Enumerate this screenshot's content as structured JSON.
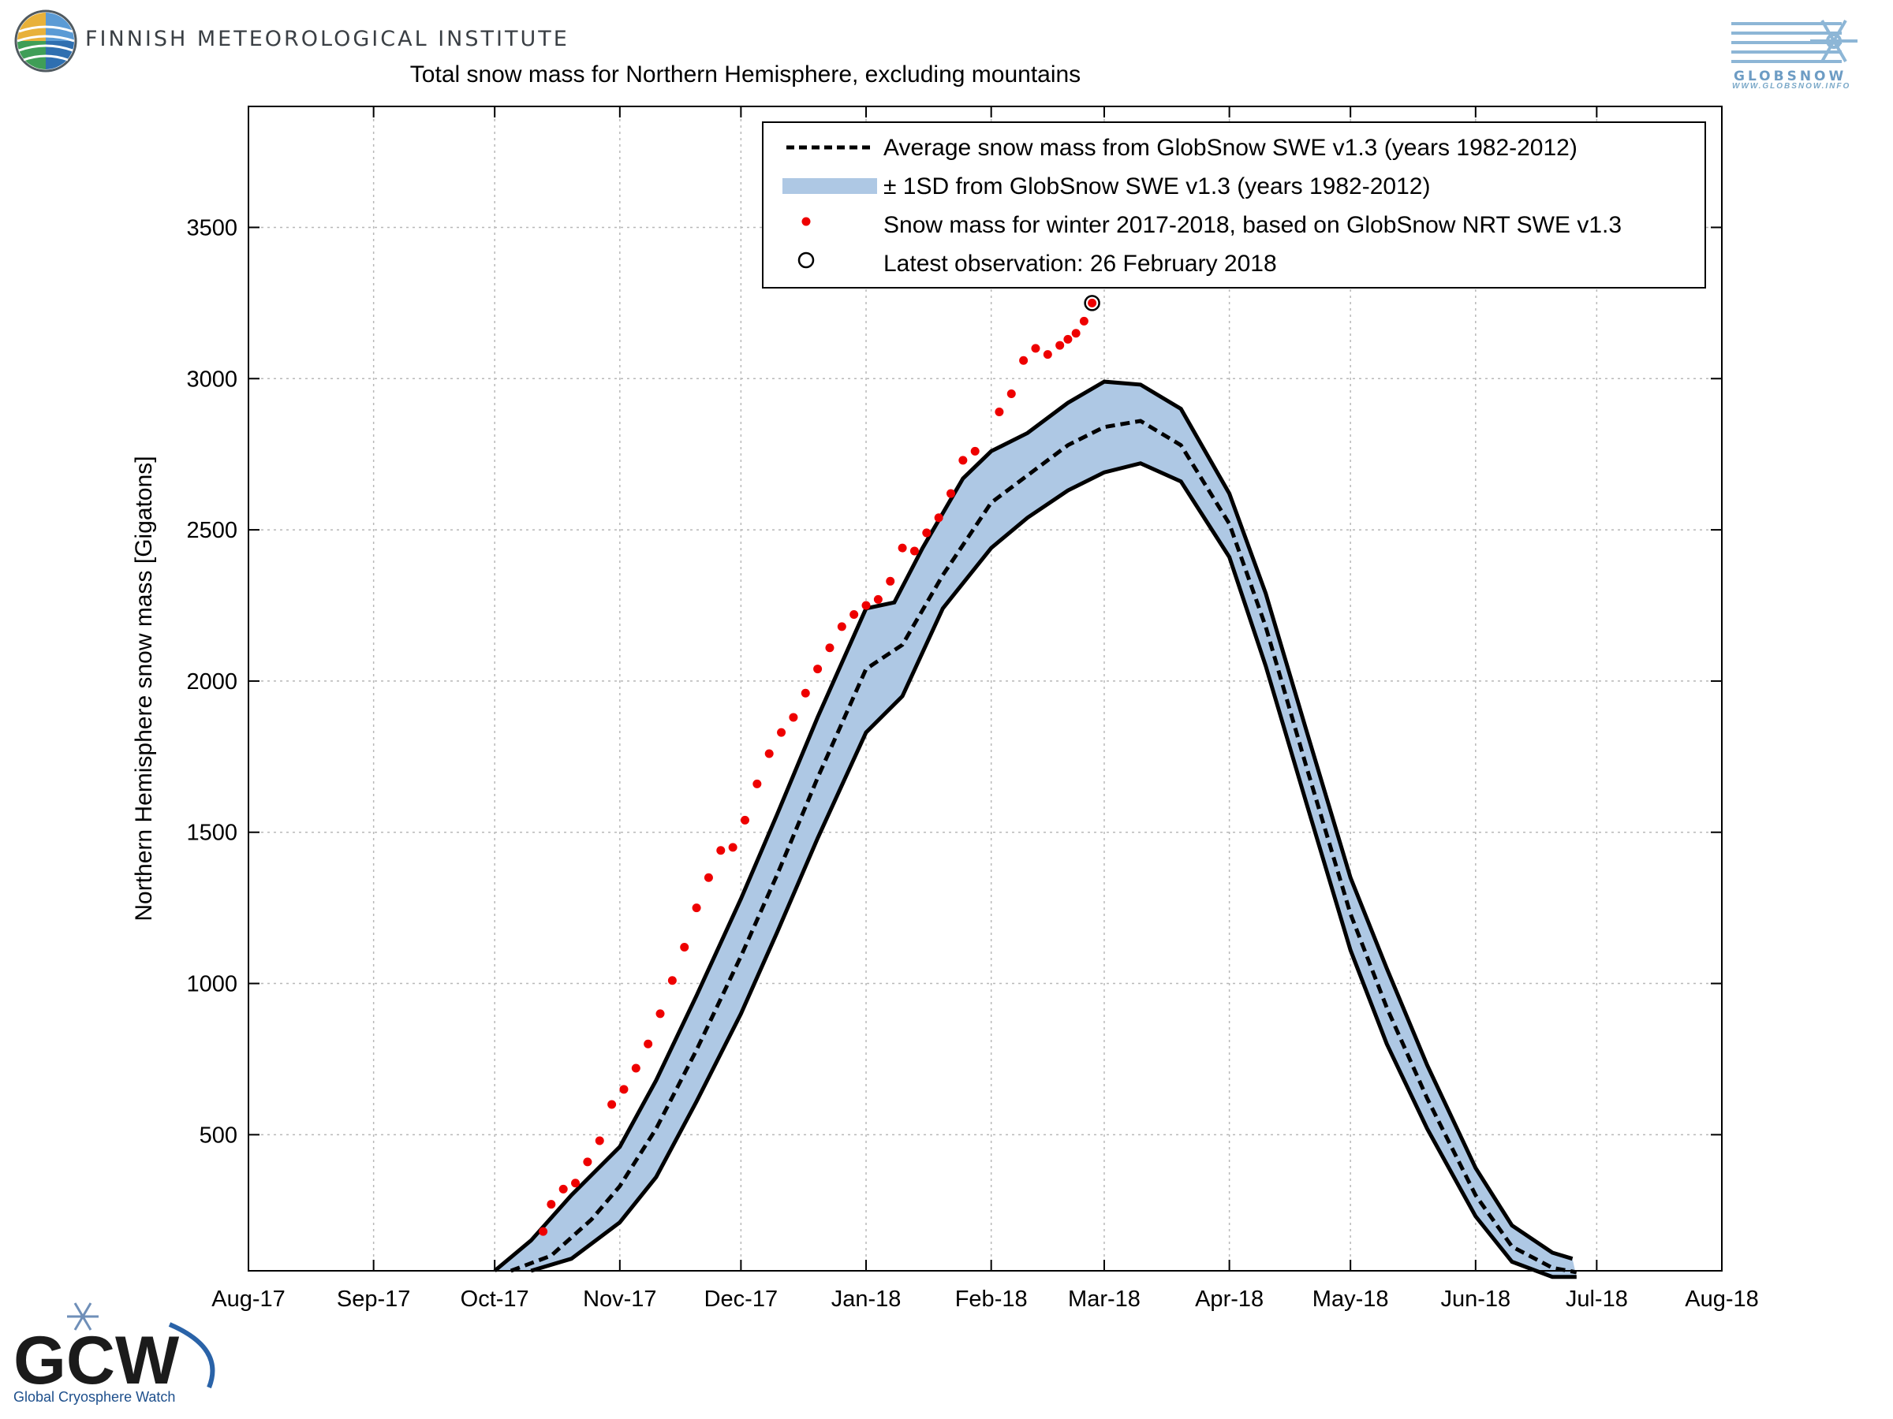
{
  "header": {
    "institute": "FINNISH METEOROLOGICAL INSTITUTE",
    "globsnow_url": "WWW.GLOBSNOW.INFO",
    "gcw_name": "Global Cryosphere Watch"
  },
  "colors": {
    "band": "#aec8e4",
    "obs": "#ee0000",
    "lines": "#000000",
    "grid": "#b8b8b8"
  },
  "chart_data": {
    "type": "line",
    "title": "Total snow mass for Northern Hemisphere, excluding mountains",
    "ylabel": "Northern Hemisphere snow mass [Gigatons]",
    "xlabel": "",
    "ylim": [
      50,
      3900
    ],
    "xlim": [
      "2017-08-01",
      "2018-08-01"
    ],
    "yticks": [
      500,
      1000,
      1500,
      2000,
      2500,
      3000,
      3500
    ],
    "xticks": [
      {
        "date": "2017-08-01",
        "label": "Aug-17"
      },
      {
        "date": "2017-09-01",
        "label": "Sep-17"
      },
      {
        "date": "2017-10-01",
        "label": "Oct-17"
      },
      {
        "date": "2017-11-01",
        "label": "Nov-17"
      },
      {
        "date": "2017-12-01",
        "label": "Dec-17"
      },
      {
        "date": "2018-01-01",
        "label": "Jan-18"
      },
      {
        "date": "2018-02-01",
        "label": "Feb-18"
      },
      {
        "date": "2018-03-01",
        "label": "Mar-18"
      },
      {
        "date": "2018-04-01",
        "label": "Apr-18"
      },
      {
        "date": "2018-05-01",
        "label": "May-18"
      },
      {
        "date": "2018-06-01",
        "label": "Jun-18"
      },
      {
        "date": "2018-07-01",
        "label": "Jul-18"
      },
      {
        "date": "2018-08-01",
        "label": "Aug-18"
      }
    ],
    "grid": true,
    "legend_position": "top-right",
    "legend": [
      {
        "kind": "dashed",
        "label": "Average snow mass from GlobSnow SWE v1.3 (years 1982-2012)"
      },
      {
        "kind": "band",
        "label": "± 1SD from GlobSnow SWE v1.3 (years 1982-2012)"
      },
      {
        "kind": "dot",
        "label": "Snow mass for winter 2017-2018, based on GlobSnow NRT SWE v1.3"
      },
      {
        "kind": "circle",
        "label": "Latest observation: 26 February 2018"
      }
    ],
    "series": [
      {
        "name": "Average snow mass from GlobSnow SWE v1.3 (years 1982-2012)",
        "style": "dashed",
        "x": [
          "2017-10-05",
          "2017-10-15",
          "2017-10-25",
          "2017-11-01",
          "2017-11-10",
          "2017-11-20",
          "2017-12-01",
          "2017-12-10",
          "2017-12-20",
          "2018-01-01",
          "2018-01-10",
          "2018-01-20",
          "2018-02-01",
          "2018-02-10",
          "2018-02-20",
          "2018-03-01",
          "2018-03-10",
          "2018-03-20",
          "2018-04-01",
          "2018-04-10",
          "2018-04-20",
          "2018-05-01",
          "2018-05-10",
          "2018-05-20",
          "2018-06-01",
          "2018-06-10",
          "2018-06-20",
          "2018-06-26"
        ],
        "values": [
          50,
          100,
          220,
          330,
          520,
          780,
          1090,
          1360,
          1680,
          2040,
          2120,
          2350,
          2590,
          2680,
          2780,
          2840,
          2860,
          2780,
          2520,
          2180,
          1720,
          1230,
          920,
          620,
          300,
          130,
          60,
          45
        ]
      },
      {
        "name": "+1SD",
        "style": "solid",
        "x": [
          "2017-10-01",
          "2017-10-10",
          "2017-10-20",
          "2017-11-01",
          "2017-11-10",
          "2017-11-20",
          "2017-12-01",
          "2017-12-10",
          "2017-12-20",
          "2018-01-01",
          "2018-01-08",
          "2018-01-15",
          "2018-01-25",
          "2018-02-01",
          "2018-02-10",
          "2018-02-20",
          "2018-03-01",
          "2018-03-10",
          "2018-03-20",
          "2018-04-01",
          "2018-04-10",
          "2018-04-20",
          "2018-05-01",
          "2018-05-10",
          "2018-05-20",
          "2018-06-01",
          "2018-06-10",
          "2018-06-20",
          "2018-06-25"
        ],
        "values": [
          50,
          150,
          300,
          460,
          680,
          960,
          1280,
          1560,
          1880,
          2240,
          2260,
          2440,
          2670,
          2760,
          2820,
          2920,
          2990,
          2980,
          2900,
          2620,
          2290,
          1840,
          1350,
          1050,
          730,
          390,
          200,
          110,
          90
        ]
      },
      {
        "name": "-1SD",
        "style": "solid",
        "x": [
          "2017-10-10",
          "2017-10-20",
          "2017-11-01",
          "2017-11-10",
          "2017-11-20",
          "2017-12-01",
          "2017-12-10",
          "2017-12-20",
          "2018-01-01",
          "2018-01-10",
          "2018-01-20",
          "2018-02-01",
          "2018-02-10",
          "2018-02-20",
          "2018-03-01",
          "2018-03-10",
          "2018-03-20",
          "2018-04-01",
          "2018-04-10",
          "2018-04-20",
          "2018-05-01",
          "2018-05-10",
          "2018-05-20",
          "2018-06-01",
          "2018-06-10",
          "2018-06-20",
          "2018-06-26"
        ],
        "values": [
          50,
          90,
          210,
          360,
          610,
          900,
          1170,
          1480,
          1830,
          1950,
          2240,
          2440,
          2540,
          2630,
          2690,
          2720,
          2660,
          2410,
          2050,
          1600,
          1110,
          800,
          520,
          230,
          80,
          30,
          30
        ]
      },
      {
        "name": "Snow mass for winter 2017-2018, based on GlobSnow NRT SWE v1.3",
        "style": "dots",
        "x": [
          "2017-10-13",
          "2017-10-15",
          "2017-10-18",
          "2017-10-21",
          "2017-10-24",
          "2017-10-27",
          "2017-10-30",
          "2017-11-02",
          "2017-11-05",
          "2017-11-08",
          "2017-11-11",
          "2017-11-14",
          "2017-11-17",
          "2017-11-20",
          "2017-11-23",
          "2017-11-26",
          "2017-11-29",
          "2017-12-02",
          "2017-12-05",
          "2017-12-08",
          "2017-12-11",
          "2017-12-14",
          "2017-12-17",
          "2017-12-20",
          "2017-12-23",
          "2017-12-26",
          "2017-12-29",
          "2018-01-01",
          "2018-01-04",
          "2018-01-07",
          "2018-01-10",
          "2018-01-13",
          "2018-01-16",
          "2018-01-19",
          "2018-01-22",
          "2018-01-25",
          "2018-01-28",
          "2018-02-03",
          "2018-02-06",
          "2018-02-09",
          "2018-02-12",
          "2018-02-15",
          "2018-02-18",
          "2018-02-20",
          "2018-02-22",
          "2018-02-24",
          "2018-02-26"
        ],
        "values": [
          180,
          270,
          320,
          340,
          410,
          480,
          600,
          650,
          720,
          800,
          900,
          1010,
          1120,
          1250,
          1350,
          1440,
          1450,
          1540,
          1660,
          1760,
          1830,
          1880,
          1960,
          2040,
          2110,
          2180,
          2220,
          2250,
          2270,
          2330,
          2440,
          2430,
          2490,
          2540,
          2620,
          2730,
          2760,
          2890,
          2950,
          3060,
          3100,
          3080,
          3110,
          3130,
          3150,
          3190,
          3250
        ]
      }
    ],
    "latest_observation": {
      "x": "2018-02-26",
      "value": 3250
    }
  }
}
